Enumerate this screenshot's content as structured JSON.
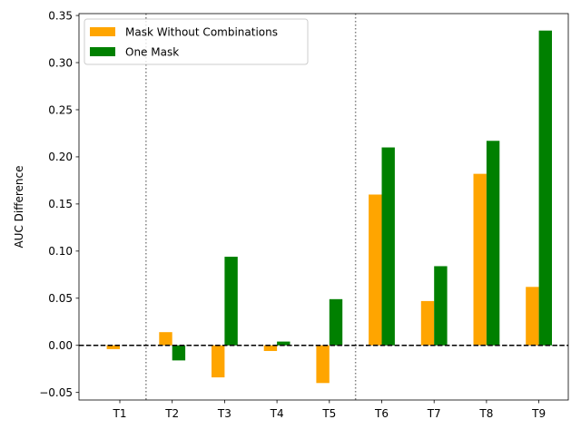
{
  "chart_data": {
    "type": "bar",
    "title": "",
    "xlabel": "",
    "ylabel": "AUC Difference",
    "categories": [
      "T1",
      "T2",
      "T3",
      "T4",
      "T5",
      "T6",
      "T7",
      "T8",
      "T9"
    ],
    "series": [
      {
        "name": "Mask Without Combinations",
        "color": "#FFA500",
        "values": [
          -0.004,
          0.014,
          -0.034,
          -0.006,
          -0.04,
          0.16,
          0.047,
          0.182,
          0.062
        ]
      },
      {
        "name": "One Mask",
        "color": "#008000",
        "values": [
          0.0,
          -0.016,
          0.094,
          0.004,
          0.049,
          0.21,
          0.084,
          0.217,
          0.334
        ]
      }
    ],
    "ylim": [
      -0.058,
      0.352
    ],
    "yticks": [
      -0.05,
      0.0,
      0.05,
      0.1,
      0.15,
      0.2,
      0.25,
      0.3,
      0.35
    ],
    "ytick_labels": [
      "−0.05",
      "0.00",
      "0.05",
      "0.10",
      "0.15",
      "0.20",
      "0.25",
      "0.30",
      "0.35"
    ],
    "reference_line": {
      "y": 0,
      "style": "dashed",
      "color": "#000000"
    },
    "separator_lines_after": [
      "T1",
      "T5"
    ],
    "grid": false,
    "legend_position": "upper-left"
  }
}
